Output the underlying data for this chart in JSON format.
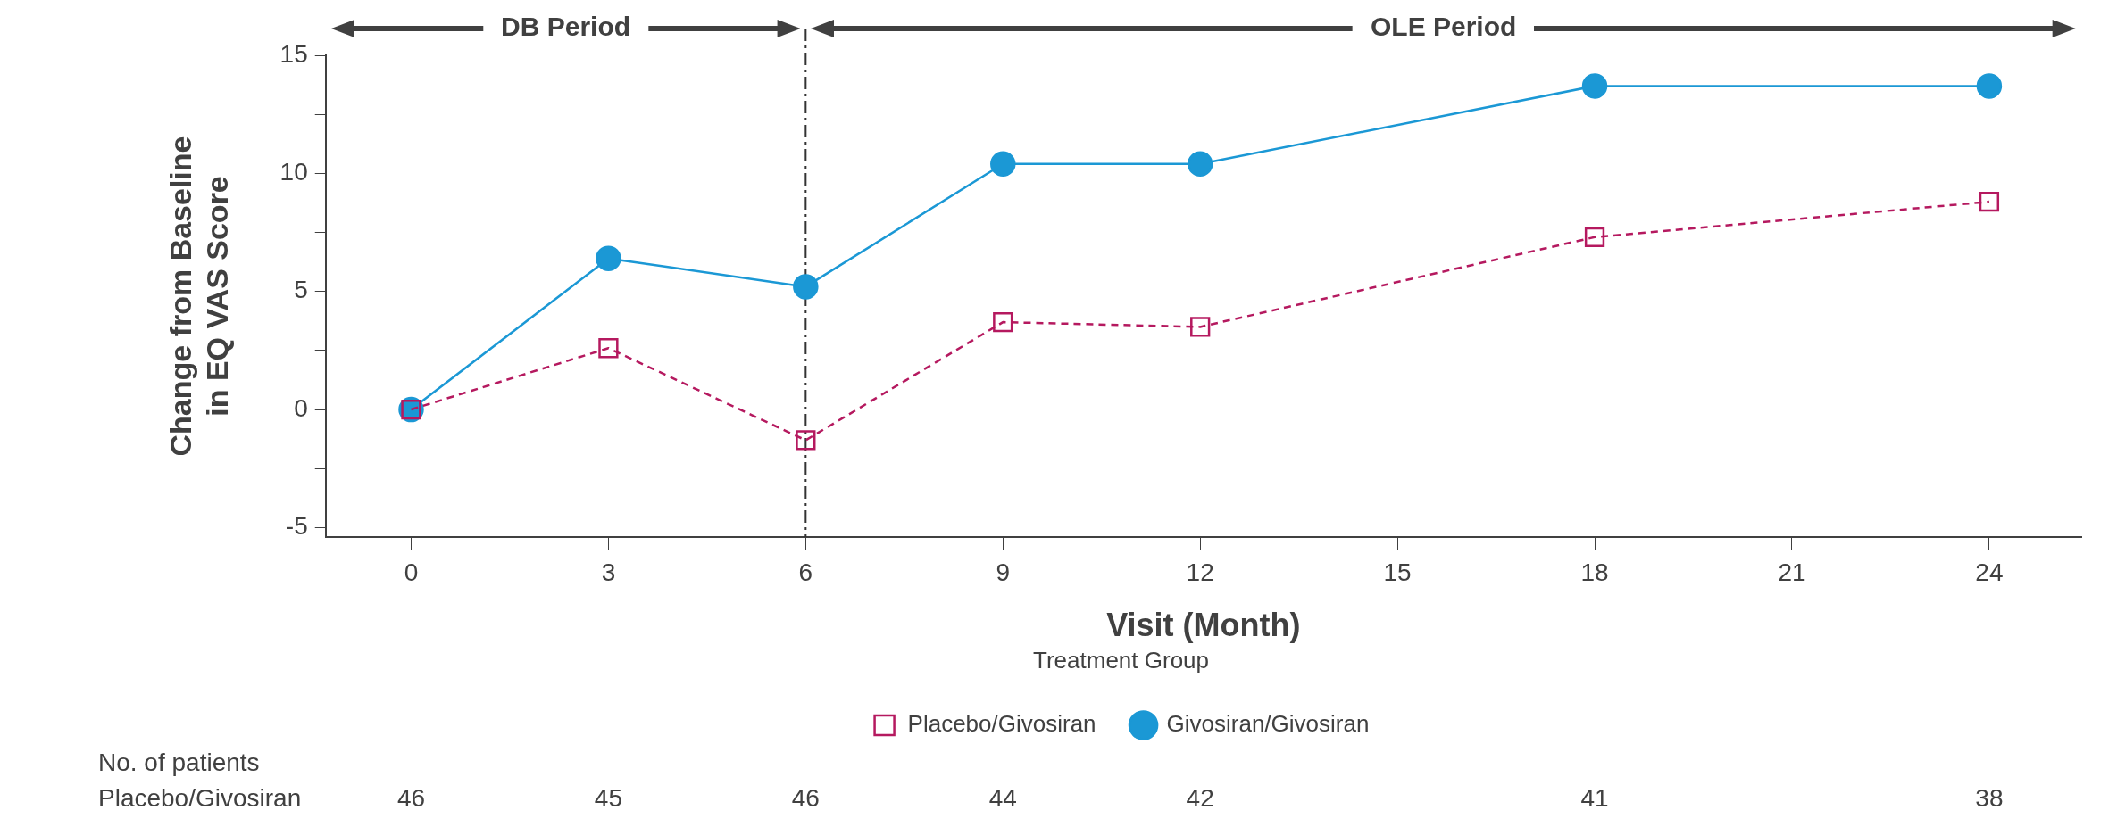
{
  "chart_data": {
    "type": "line",
    "xlabel": "Visit (Month)",
    "ylabel": "Change from Baseline in EQ VAS Score",
    "legend_title": "Treatment Group",
    "x": [
      0,
      3,
      6,
      9,
      12,
      18,
      24
    ],
    "series": [
      {
        "name": "Placebo/Givosiran",
        "color": "#b5195f",
        "marker": "square",
        "line_style": "dashed",
        "values": [
          0,
          2.6,
          -1.3,
          3.7,
          3.5,
          7.3,
          8.8
        ]
      },
      {
        "name": "Givosiran/Givosiran",
        "color": "#1b98d5",
        "marker": "circle",
        "line_style": "solid",
        "values": [
          0,
          6.4,
          5.2,
          10.4,
          10.4,
          13.7,
          13.7
        ]
      }
    ],
    "xlim": [
      -1.3,
      25.4
    ],
    "xticks": [
      0,
      3,
      6,
      9,
      12,
      15,
      18,
      21,
      24
    ],
    "ylim": [
      -5.4,
      15
    ],
    "yticks": [
      -5,
      {
        "value": -2.5,
        "label": null
      },
      0,
      {
        "value": 2.5,
        "label": null
      },
      5,
      {
        "value": 7.5,
        "label": null
      },
      10,
      {
        "value": 12.5,
        "label": null
      },
      15
    ],
    "ref_lines": [
      {
        "axis": "x",
        "value": 6,
        "color": "#333333",
        "line_style": "dashdot"
      }
    ],
    "annotations": [
      "DB Period",
      "OLE Period",
      "No. of patients",
      "Placebo/Givosiran",
      "46",
      "45",
      "46",
      "44",
      "42",
      "41",
      "38"
    ],
    "grid": false,
    "legend": "bottom"
  }
}
